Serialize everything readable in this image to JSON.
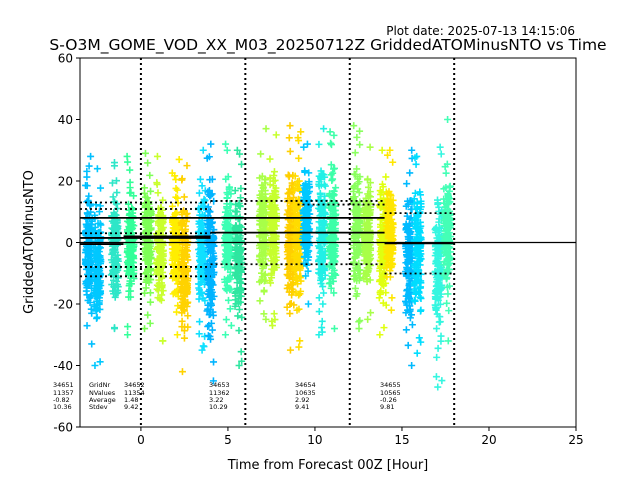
{
  "chart_data": {
    "type": "scatter",
    "plot_date": "Plot date: 2025-07-13 14:15:06",
    "title": "S-O3M_GOME_VOD_XX_M03_20250712Z GriddedATOMinusNTO vs Time",
    "xlabel": "Time from Forecast 00Z [Hour]",
    "ylabel": "GriddedATOMinusNTO",
    "xlim": [
      -3.5,
      25
    ],
    "ylim": [
      -60,
      60
    ],
    "xticks": [
      0,
      5,
      10,
      15,
      20,
      25
    ],
    "yticks": [
      -60,
      -40,
      -20,
      0,
      20,
      40,
      60
    ],
    "grid": false,
    "marker": "+",
    "zero_line": 0,
    "forecast_boundaries": [
      0,
      6,
      12,
      18
    ],
    "clusters": [
      {
        "x": -3.0,
        "low": -33,
        "high": 28,
        "color": "#00bfff"
      },
      {
        "x": -2.5,
        "low": -40,
        "high": 24,
        "color": "#00c8ff"
      },
      {
        "x": -1.5,
        "low": -28,
        "high": 26,
        "color": "#2ee6c8"
      },
      {
        "x": -0.6,
        "low": -30,
        "high": 28,
        "color": "#33ff99"
      },
      {
        "x": 0.4,
        "low": -28,
        "high": 29,
        "color": "#7dff57"
      },
      {
        "x": 1.1,
        "low": -32,
        "high": 28,
        "color": "#c9ff2e"
      },
      {
        "x": 2.0,
        "low": -30,
        "high": 27,
        "color": "#ffee00"
      },
      {
        "x": 2.5,
        "low": -42,
        "high": 25,
        "color": "#ffd200"
      },
      {
        "x": 3.5,
        "low": -35,
        "high": 30,
        "color": "#10e0ff"
      },
      {
        "x": 4.0,
        "low": -45,
        "high": 32,
        "color": "#00b4ff"
      },
      {
        "x": 5.0,
        "low": -30,
        "high": 32,
        "color": "#3cffb4"
      },
      {
        "x": 5.6,
        "low": -40,
        "high": 30,
        "color": "#2ee6a0"
      },
      {
        "x": 7.0,
        "low": -25,
        "high": 37,
        "color": "#a8ff48"
      },
      {
        "x": 7.6,
        "low": -27,
        "high": 35,
        "color": "#c6ff2e"
      },
      {
        "x": 8.6,
        "low": -35,
        "high": 38,
        "color": "#ffcf00"
      },
      {
        "x": 9.0,
        "low": -34,
        "high": 36,
        "color": "#ffdc00"
      },
      {
        "x": 9.5,
        "low": -20,
        "high": 32,
        "color": "#00c8ff"
      },
      {
        "x": 10.4,
        "low": -30,
        "high": 37,
        "color": "#22f0e6"
      },
      {
        "x": 11.0,
        "low": -28,
        "high": 36,
        "color": "#3dffa8"
      },
      {
        "x": 12.4,
        "low": -28,
        "high": 38,
        "color": "#8aff5f"
      },
      {
        "x": 13.0,
        "low": -25,
        "high": 31,
        "color": "#a8ff48"
      },
      {
        "x": 13.9,
        "low": -30,
        "high": 30,
        "color": "#e0ff10"
      },
      {
        "x": 14.3,
        "low": -22,
        "high": 30,
        "color": "#ffe600"
      },
      {
        "x": 15.4,
        "low": -40,
        "high": 30,
        "color": "#00baff"
      },
      {
        "x": 15.9,
        "low": -36,
        "high": 28,
        "color": "#00ddff"
      },
      {
        "x": 17.1,
        "low": -47,
        "high": 31,
        "color": "#35f6e0"
      },
      {
        "x": 17.6,
        "low": -32,
        "high": 40,
        "color": "#44ffb6"
      }
    ],
    "stat_lines": [
      {
        "x1": -3.5,
        "x2": 4.0,
        "y": 1.48,
        "style": "solid"
      },
      {
        "x1": -3.5,
        "x2": 4.0,
        "y": 10.9,
        "style": "dotted"
      },
      {
        "x1": -3.5,
        "x2": 4.0,
        "y": -7.94,
        "style": "dotted"
      },
      {
        "x1": -3.5,
        "x2": 4.0,
        "y": 8.0,
        "style": "solid"
      },
      {
        "x1": -3.5,
        "x2": 4.0,
        "y": 3.0,
        "style": "dotted"
      },
      {
        "x1": -3.5,
        "x2": 4.0,
        "y": 13.0,
        "style": "dotted"
      },
      {
        "x1": -3.5,
        "x2": 4.0,
        "y": -11.0,
        "style": "dotted"
      },
      {
        "x1": -3.5,
        "x2": -1.0,
        "y": -0.5,
        "style": "solid"
      },
      {
        "x1": -1.0,
        "x2": 4.0,
        "y": 2.0,
        "style": "solid"
      },
      {
        "x1": 4.0,
        "x2": 14.0,
        "y": 3.22,
        "style": "solid"
      },
      {
        "x1": 4.0,
        "x2": 14.0,
        "y": 13.51,
        "style": "dotted"
      },
      {
        "x1": 4.0,
        "x2": 14.0,
        "y": -7.07,
        "style": "dotted"
      },
      {
        "x1": 4.0,
        "x2": 14.0,
        "y": 8.0,
        "style": "solid"
      },
      {
        "x1": 9.0,
        "x2": 14.0,
        "y": 12.33,
        "style": "dotted"
      },
      {
        "x1": 14.0,
        "x2": 18.0,
        "y": -0.26,
        "style": "solid"
      },
      {
        "x1": 14.0,
        "x2": 18.0,
        "y": 9.55,
        "style": "dotted"
      },
      {
        "x1": 14.0,
        "x2": 18.0,
        "y": -10.07,
        "style": "dotted"
      }
    ],
    "stats_labels": {
      "row_names": [
        "GridNr",
        "NValues",
        "Average",
        "Stdev"
      ],
      "columns": [
        {
          "lines": [
            "34651",
            "11357",
            "-0.82",
            "10.36"
          ]
        },
        {
          "lines": [
            "34652",
            "11354",
            "1.48",
            "9.42"
          ]
        },
        {
          "lines": [
            "34653",
            "11362",
            "3.22",
            "10.29"
          ]
        },
        {
          "lines": [
            "34654",
            "10635",
            "2.92",
            "9.41"
          ]
        },
        {
          "lines": [
            "34655",
            "10565",
            "-0.26",
            "9.81"
          ]
        }
      ]
    }
  }
}
